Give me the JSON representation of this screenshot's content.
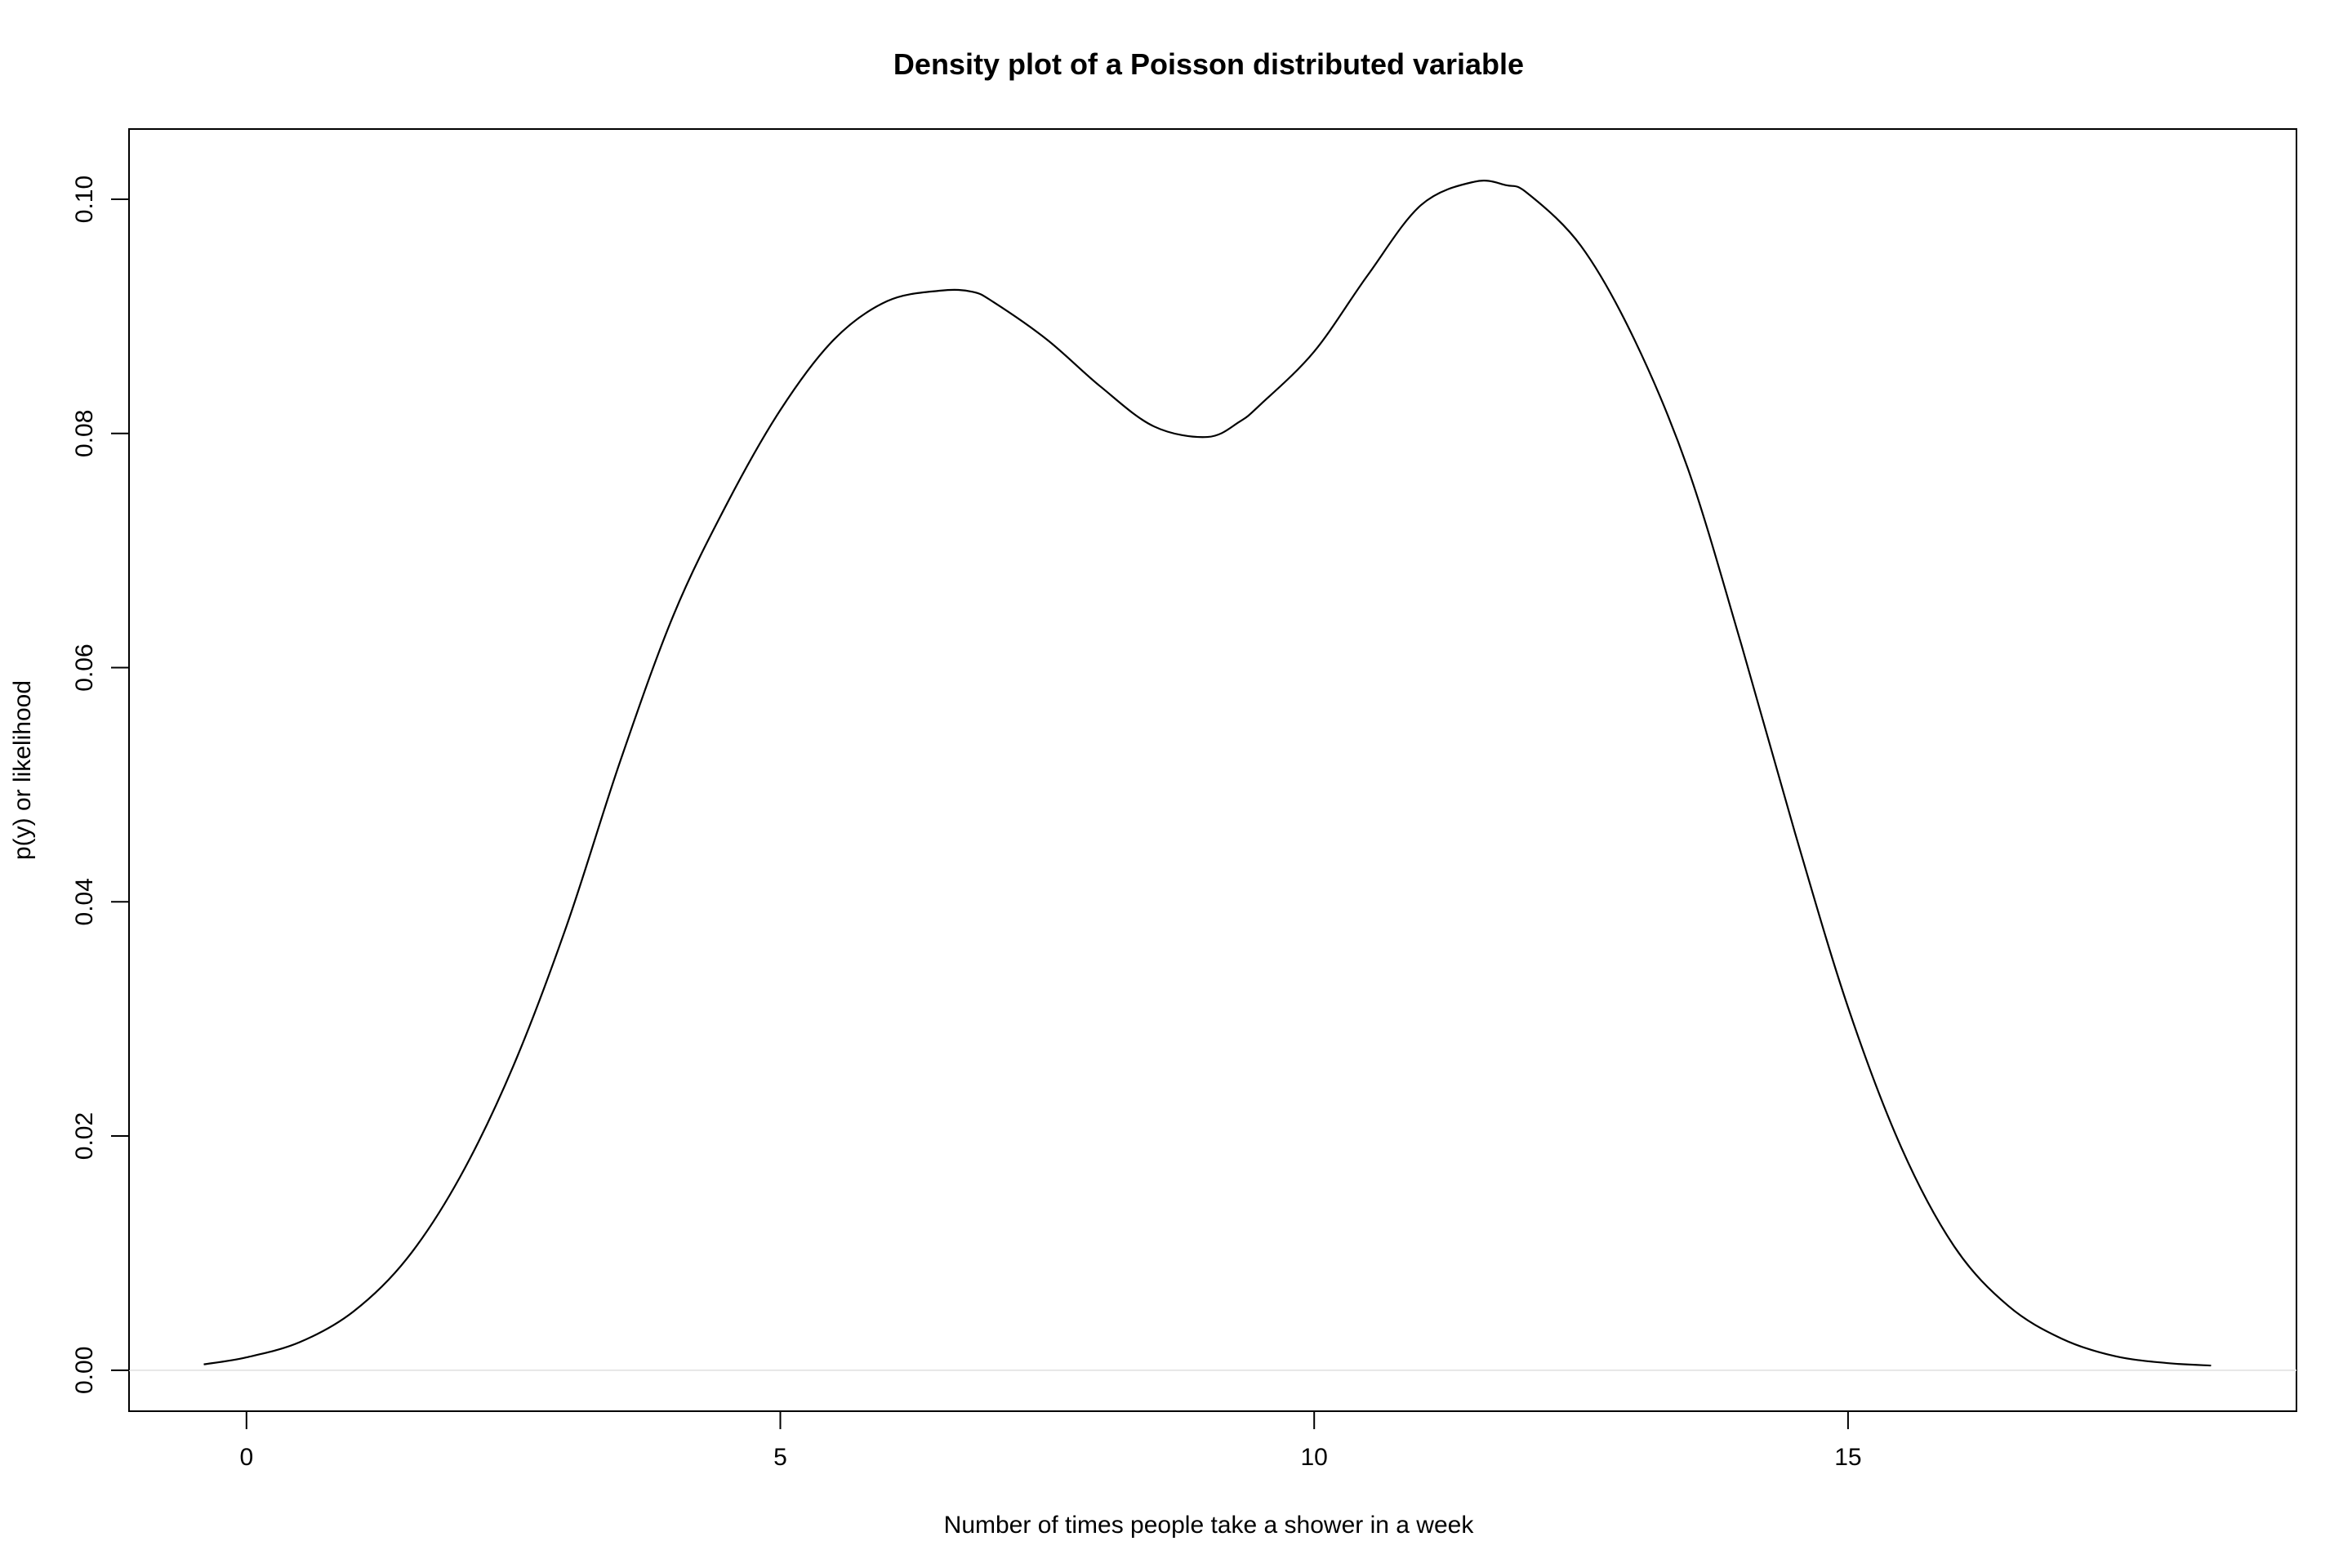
{
  "chart_data": {
    "type": "line",
    "title": "Density plot of a Poisson distributed variable",
    "xlabel": "Number of times people take a shower in a week",
    "ylabel": "p(y) or likelihood",
    "xlim": [
      -1.1,
      19.2
    ],
    "ylim": [
      -0.0035,
      0.106
    ],
    "x_ticks": [
      0,
      5,
      10,
      15
    ],
    "x_tick_labels": [
      "0",
      "5",
      "10",
      "15"
    ],
    "y_ticks": [
      0.0,
      0.02,
      0.04,
      0.06,
      0.08,
      0.1
    ],
    "y_tick_labels": [
      "0.00",
      "0.02",
      "0.04",
      "0.06",
      "0.08",
      "0.10"
    ],
    "grid": false,
    "zero_line": true,
    "colors": {
      "line": "#000000",
      "zero_line": "#e6e6e6",
      "frame": "#000000"
    },
    "series": [
      {
        "x": [
          -0.4,
          0,
          0.5,
          1,
          1.5,
          2,
          2.5,
          3,
          3.5,
          4,
          4.5,
          5,
          5.5,
          6,
          6.5,
          6.8,
          7,
          7.5,
          8,
          8.5,
          9,
          9.3,
          9.5,
          10,
          10.5,
          11,
          11.5,
          11.8,
          12,
          12.5,
          13,
          13.5,
          14,
          14.5,
          15,
          15.5,
          16,
          16.5,
          17,
          17.5,
          18,
          18.4
        ],
        "y": [
          0.0005,
          0.0011,
          0.0024,
          0.005,
          0.0095,
          0.0165,
          0.026,
          0.038,
          0.052,
          0.0645,
          0.074,
          0.082,
          0.088,
          0.0913,
          0.0922,
          0.0921,
          0.0912,
          0.088,
          0.084,
          0.0806,
          0.0797,
          0.081,
          0.0825,
          0.087,
          0.0935,
          0.0995,
          0.1015,
          0.1012,
          0.1005,
          0.096,
          0.088,
          0.077,
          0.062,
          0.046,
          0.031,
          0.019,
          0.0105,
          0.0055,
          0.0027,
          0.0012,
          0.0006,
          0.0004
        ]
      }
    ]
  }
}
